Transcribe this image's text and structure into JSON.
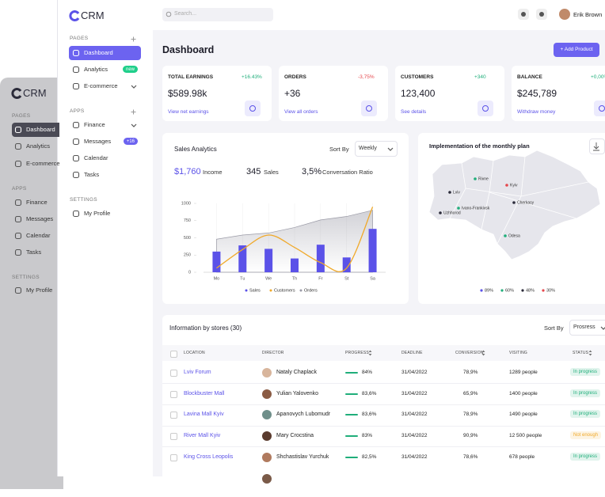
{
  "back_sidebar": {
    "logo": "CRM",
    "sections": [
      {
        "title": "PAGES",
        "items": [
          "Dashboard",
          "Analytics",
          "E-commerce"
        ]
      },
      {
        "title": "APPS",
        "items": [
          "Finance",
          "Messages",
          "Calendar",
          "Tasks"
        ]
      },
      {
        "title": "SETTINGS",
        "items": [
          "My Profile"
        ]
      }
    ]
  },
  "sidebar": {
    "logo": "CRM",
    "sections": [
      {
        "title": "PAGES",
        "items": [
          {
            "label": "Dashboard"
          },
          {
            "label": "Analytics",
            "badge": "new"
          },
          {
            "label": "E-commerce"
          }
        ]
      },
      {
        "title": "APPS",
        "items": [
          {
            "label": "Finance"
          },
          {
            "label": "Messages",
            "badge": "+16"
          },
          {
            "label": "Calendar"
          },
          {
            "label": "Tasks"
          }
        ]
      },
      {
        "title": "SETTINGS",
        "items": [
          {
            "label": "My Profile"
          }
        ]
      }
    ]
  },
  "topbar": {
    "search": "Search...",
    "user": "Erik Brown"
  },
  "header": {
    "title": "Dashboard",
    "button": "+ Add Product"
  },
  "kpis": [
    {
      "title": "TOTAL EARNINGS",
      "change": "+16.43%",
      "change_color": "#1fae7a",
      "value": "$589.98k",
      "link": "View net earnings"
    },
    {
      "title": "ORDERS",
      "change": "-3,75%",
      "change_color": "#e5484d",
      "value": "+36",
      "link": "View all orders"
    },
    {
      "title": "CUSTOMERS",
      "change": "+340",
      "change_color": "#1fae7a",
      "value": "123,400",
      "link": "See details"
    },
    {
      "title": "BALANCE",
      "change": "+0,00%",
      "change_color": "#1fae7a",
      "value": "$245,789",
      "link": "Withdraw money"
    }
  ],
  "sales": {
    "title": "Sales Analytics",
    "sort_label": "Sort By",
    "sort_value": "Weekly",
    "stats": [
      {
        "value": "$1,760",
        "label": "Income"
      },
      {
        "value": "345",
        "label": "Sales"
      },
      {
        "value": "3,5%",
        "label": "Conversation Ratio"
      }
    ]
  },
  "chart_data": {
    "type": "bar",
    "categories": [
      "Mo",
      "Tu",
      "We",
      "Th",
      "Fr",
      "St",
      "Sa"
    ],
    "ylim": [
      0,
      1000
    ],
    "yticks": [
      0,
      250,
      500,
      750,
      1000
    ],
    "series": [
      {
        "name": "Sales",
        "type": "bar",
        "color": "#5b52e8",
        "values": [
          300,
          390,
          340,
          200,
          400,
          215,
          630
        ]
      },
      {
        "name": "Customers",
        "type": "line",
        "color": "#f0a92a",
        "values": [
          60,
          330,
          540,
          360,
          140,
          60,
          950
        ]
      },
      {
        "name": "Orders",
        "type": "area",
        "color": "#9a9aa6",
        "values": [
          480,
          540,
          570,
          650,
          760,
          810,
          900
        ]
      }
    ]
  },
  "map": {
    "title": "Implementation of the monthly plan",
    "cities": [
      {
        "name": "Rivne",
        "color": "#1fae7a"
      },
      {
        "name": "Kyiv",
        "color": "#e5484d"
      },
      {
        "name": "Lviv",
        "color": "#2b2b3a"
      },
      {
        "name": "Ivano-Frankivsk",
        "color": "#1fae7a"
      },
      {
        "name": "Cherkasy",
        "color": "#2b2b3a"
      },
      {
        "name": "Uzhhorod",
        "color": "#2b2b3a"
      },
      {
        "name": "Odesa",
        "color": "#1fae7a"
      }
    ],
    "legend": [
      {
        "label": "89%",
        "color": "#5b52e8"
      },
      {
        "label": "60%",
        "color": "#1fae7a"
      },
      {
        "label": "48%",
        "color": "#2b2b3a"
      },
      {
        "label": "30%",
        "color": "#e5484d"
      }
    ]
  },
  "stores": {
    "title": "Information by stores (30)",
    "sort_label": "Sort By",
    "sort_value": "Prosress",
    "columns": [
      "LOCATION",
      "DIRECTOR",
      "PROGRESS",
      "DEADLINE",
      "CONVERSION",
      "VISITING",
      "STATUS"
    ],
    "rows": [
      {
        "location": "Lviv Forum",
        "director": "Nataly Chaplack",
        "progress": "84%",
        "deadline": "31/04/2022",
        "conversion": "78,9%",
        "visiting": "1289 people",
        "status": "In progress",
        "status_color": "#1fae7a"
      },
      {
        "location": "Blockbuster Mall",
        "director": "Yulian Yalovenko",
        "progress": "83,6%",
        "deadline": "31/04/2022",
        "conversion": "65,9%",
        "visiting": "1400 people",
        "status": "In progress",
        "status_color": "#1fae7a"
      },
      {
        "location": "Lavina Mall Kyiv",
        "director": "Apanovych Lubomudr",
        "progress": "83,6%",
        "deadline": "31/04/2022",
        "conversion": "78,9%",
        "visiting": "1490 people",
        "status": "In progress",
        "status_color": "#1fae7a"
      },
      {
        "location": "River Mall Kyiv",
        "director": "Mary Crocstina",
        "progress": "83%",
        "deadline": "31/04/2022",
        "conversion": "90,9%",
        "visiting": "12 500 people",
        "status": "Not enough",
        "status_color": "#f0a92a"
      },
      {
        "location": "King Cross Leopolis",
        "director": "Shchastislav Yurchuk",
        "progress": "82,5%",
        "deadline": "31/04/2022",
        "conversion": "78,6%",
        "visiting": "678 people",
        "status": "In progress",
        "status_color": "#1fae7a"
      }
    ]
  }
}
